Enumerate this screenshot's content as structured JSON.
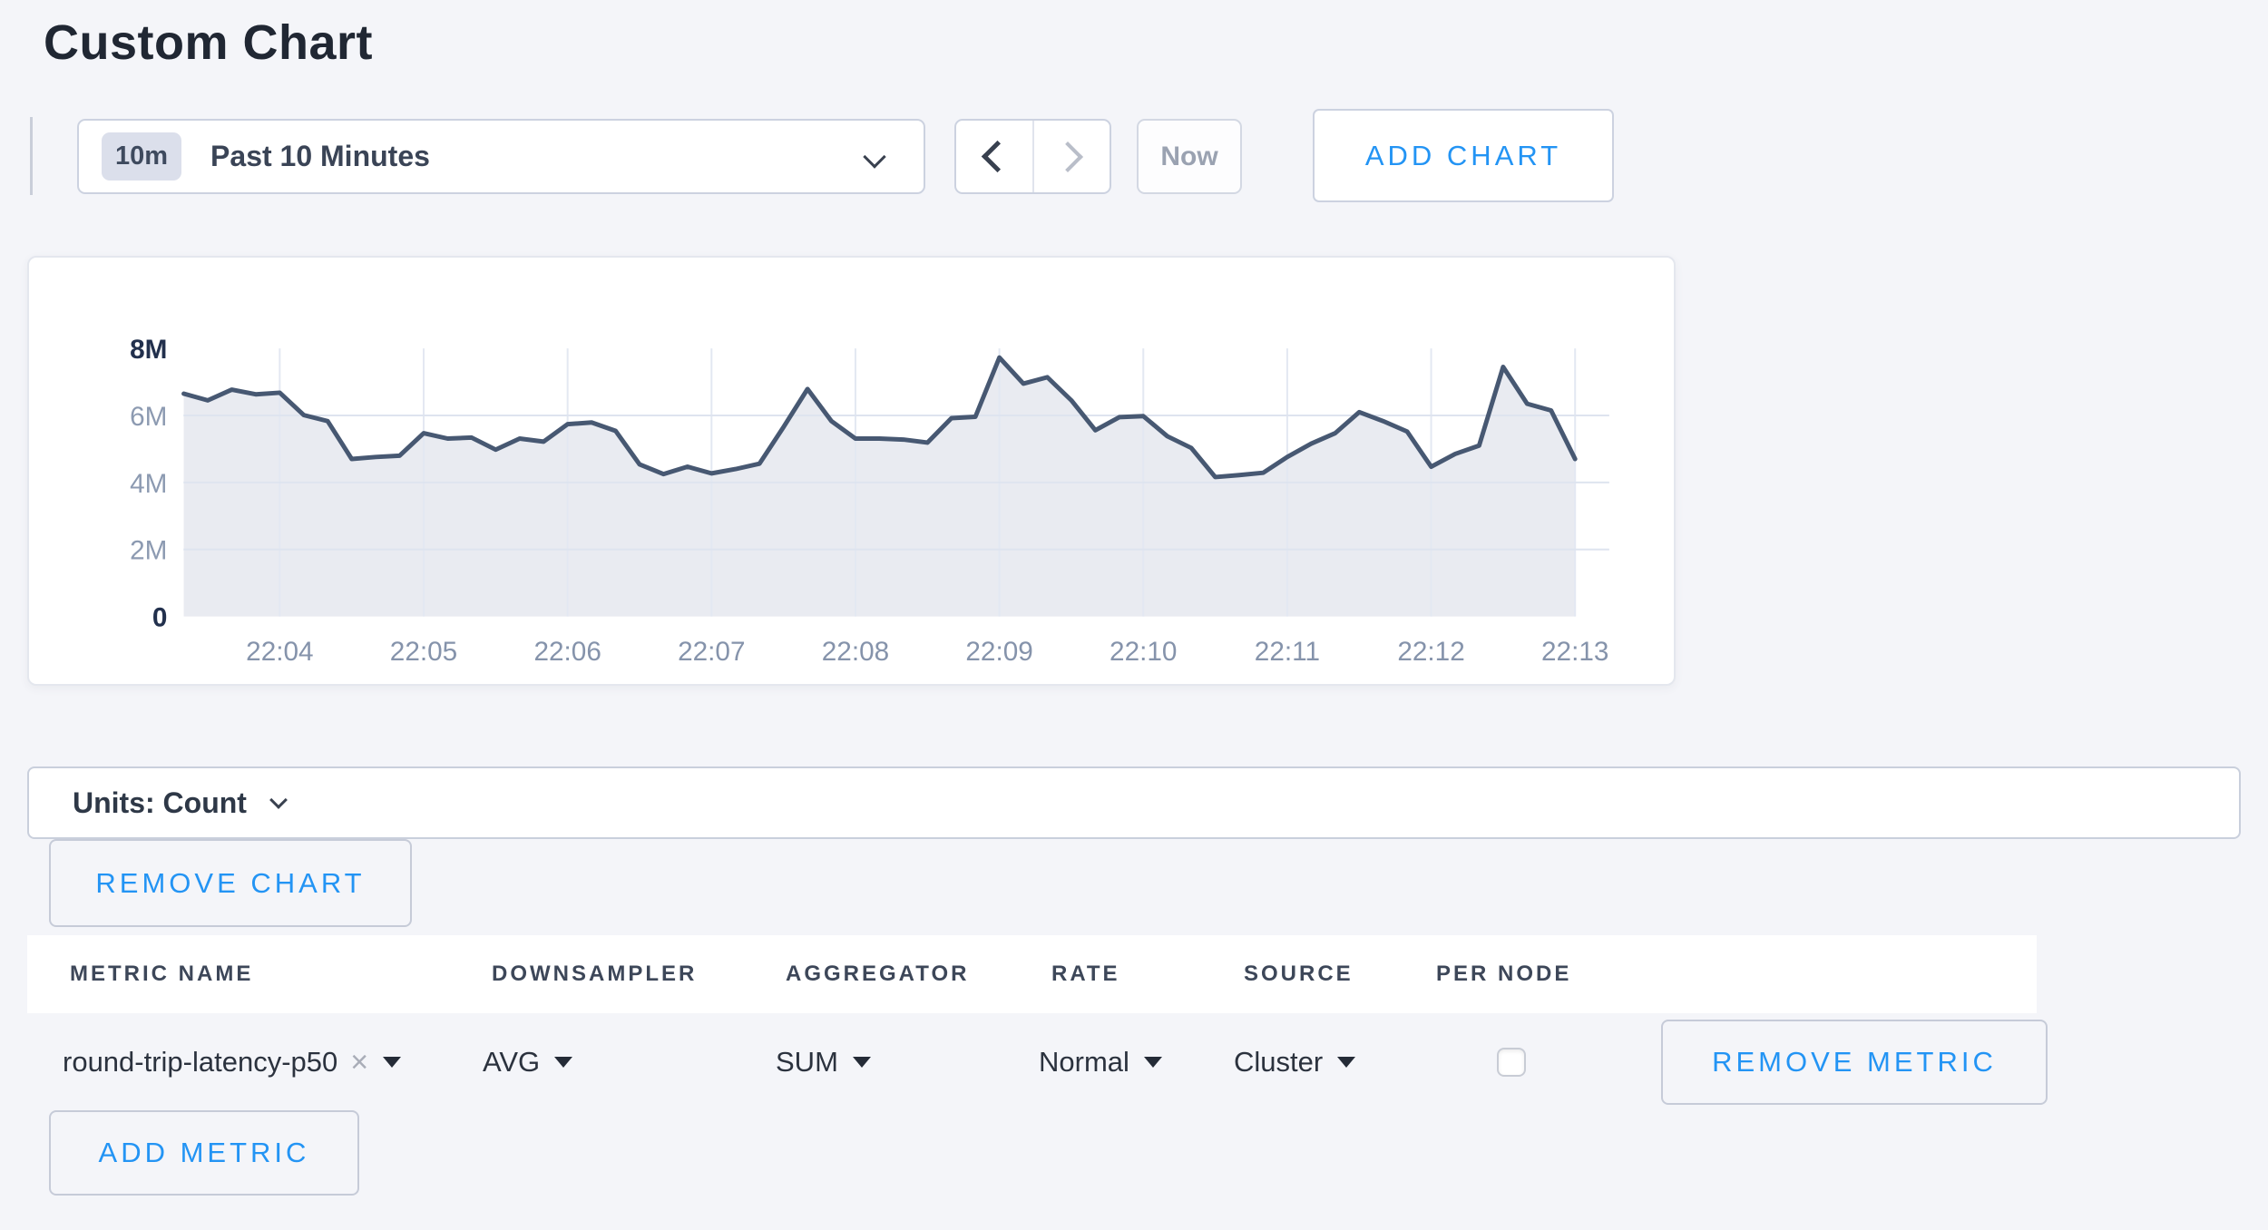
{
  "page": {
    "title": "Custom Chart",
    "background_color": "#f4f5f9",
    "accent_blue": "#2394f4"
  },
  "toolbar": {
    "time_badge": "10m",
    "time_label": "Past 10 Minutes",
    "now_label": "Now",
    "add_chart_label": "ADD CHART"
  },
  "units_bar": {
    "label": "Units: Count"
  },
  "chart_actions": {
    "remove_chart_label": "REMOVE CHART",
    "remove_metric_label": "REMOVE METRIC",
    "add_metric_label": "ADD METRIC"
  },
  "metrics_table": {
    "headers": [
      "METRIC NAME",
      "DOWNSAMPLER",
      "AGGREGATOR",
      "RATE",
      "SOURCE",
      "PER NODE"
    ],
    "rows": [
      {
        "metric_name": "round-trip-latency-p50",
        "downsampler": "AVG",
        "aggregator": "SUM",
        "rate": "Normal",
        "source": "Cluster",
        "per_node_checked": false
      }
    ]
  },
  "chart_data": {
    "type": "area",
    "title": "",
    "unit": "Count",
    "x_start": "22:03:20",
    "x_interval_seconds": 10,
    "x_tick_labels": [
      "22:04",
      "22:05",
      "22:06",
      "22:07",
      "22:08",
      "22:09",
      "22:10",
      "22:11",
      "22:12",
      "22:13"
    ],
    "y_tick_labels": [
      "0",
      "2M",
      "4M",
      "6M",
      "8M"
    ],
    "ylim": [
      0,
      8000000
    ],
    "grid": true,
    "legend": "none",
    "line_color": "#475872",
    "fill_color": "#e9ebf1",
    "grid_color_vertical": "#e3e8f2",
    "grid_color_horizontal": "#dee4ef",
    "series": [
      {
        "name": "round-trip-latency-p50",
        "values_millions": [
          6.65,
          6.45,
          6.77,
          6.63,
          6.68,
          6.01,
          5.83,
          4.7,
          4.76,
          4.8,
          5.47,
          5.31,
          5.34,
          4.98,
          5.31,
          5.22,
          5.74,
          5.79,
          5.54,
          4.54,
          4.25,
          4.47,
          4.27,
          4.4,
          4.56,
          5.65,
          6.79,
          5.83,
          5.31,
          5.31,
          5.28,
          5.19,
          5.92,
          5.96,
          7.73,
          6.95,
          7.14,
          6.45,
          5.56,
          5.95,
          5.98,
          5.38,
          5.03,
          4.16,
          4.22,
          4.29,
          4.76,
          5.16,
          5.47,
          6.1,
          5.83,
          5.52,
          4.47,
          4.85,
          5.1,
          7.45,
          6.35,
          6.15,
          4.7
        ]
      }
    ]
  }
}
